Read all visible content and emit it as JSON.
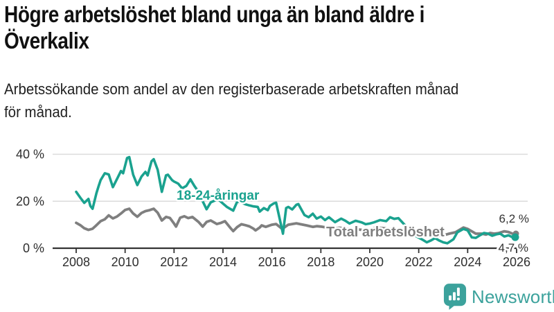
{
  "header": {
    "title_lines": [
      "Högre arbetslöshet bland unga än bland äldre i",
      "Överkalix"
    ],
    "subtitle_lines": [
      "Arbetssökande som andel av den registerbaserade arbetskraften månad",
      "för månad."
    ]
  },
  "footer": {
    "brand": "Newsworthy",
    "logo_icon": "speech-bubble-bar-chart-exclamation"
  },
  "colors": {
    "youth_line": "#1AA28F",
    "total_line": "#7F7F7F",
    "axis": "#333333",
    "grid": "#DBDBDB",
    "tick_text": "#2E2E2E",
    "end_label_text": "#333333",
    "logo": "#3CA29C",
    "background": "#FFFFFF"
  },
  "chart_data": {
    "type": "line",
    "title": "Högre arbetslöshet bland unga än bland äldre i Överkalix",
    "subtitle": "Arbetssökande som andel av den registerbaserade arbetskraften månad för månad.",
    "xlabel": "",
    "ylabel": "",
    "x_unit": "decimal_year_monthly",
    "xlim": [
      2007.7,
      2026.4
    ],
    "ylim": [
      0,
      42
    ],
    "yticks": [
      0,
      20,
      40
    ],
    "ytick_labels": [
      "0 %",
      "20 %",
      "40 %"
    ],
    "xticks": [
      2008,
      2010,
      2012,
      2014,
      2016,
      2018,
      2020,
      2022,
      2024,
      2026
    ],
    "grid": "horizontal",
    "legend_position": "inline-labels",
    "series": [
      {
        "name": "Total arbetslöshet",
        "color": "#7F7F7F",
        "end_label": "6,2 %",
        "points": [
          [
            2008.0,
            10.8
          ],
          [
            2008.17,
            9.8
          ],
          [
            2008.33,
            8.5
          ],
          [
            2008.5,
            7.8
          ],
          [
            2008.67,
            8.3
          ],
          [
            2008.83,
            9.8
          ],
          [
            2009.0,
            11.5
          ],
          [
            2009.17,
            12.3
          ],
          [
            2009.33,
            14.0
          ],
          [
            2009.5,
            12.7
          ],
          [
            2009.67,
            13.5
          ],
          [
            2009.83,
            14.8
          ],
          [
            2010.0,
            16.3
          ],
          [
            2010.17,
            16.8
          ],
          [
            2010.33,
            14.8
          ],
          [
            2010.5,
            13.4
          ],
          [
            2010.67,
            15.0
          ],
          [
            2010.83,
            15.8
          ],
          [
            2011.0,
            16.2
          ],
          [
            2011.17,
            16.8
          ],
          [
            2011.33,
            15.1
          ],
          [
            2011.5,
            11.8
          ],
          [
            2011.67,
            13.3
          ],
          [
            2011.83,
            12.9
          ],
          [
            2012.0,
            10.5
          ],
          [
            2012.08,
            9.2
          ],
          [
            2012.25,
            13.0
          ],
          [
            2012.42,
            13.6
          ],
          [
            2012.58,
            12.8
          ],
          [
            2012.75,
            13.3
          ],
          [
            2013.0,
            11.2
          ],
          [
            2013.17,
            9.2
          ],
          [
            2013.33,
            11.2
          ],
          [
            2013.5,
            11.8
          ],
          [
            2013.75,
            10.3
          ],
          [
            2013.92,
            10.8
          ],
          [
            2014.08,
            11.5
          ],
          [
            2014.33,
            8.3
          ],
          [
            2014.42,
            7.3
          ],
          [
            2014.58,
            9.0
          ],
          [
            2014.75,
            10.2
          ],
          [
            2014.92,
            9.8
          ],
          [
            2015.08,
            9.3
          ],
          [
            2015.25,
            8.3
          ],
          [
            2015.33,
            7.6
          ],
          [
            2015.5,
            8.8
          ],
          [
            2015.58,
            9.7
          ],
          [
            2015.75,
            9.1
          ],
          [
            2016.0,
            10.0
          ],
          [
            2016.17,
            10.3
          ],
          [
            2016.42,
            8.2
          ],
          [
            2016.67,
            10.0
          ],
          [
            2016.83,
            10.3
          ],
          [
            2017.0,
            10.6
          ],
          [
            2017.17,
            10.2
          ],
          [
            2017.42,
            9.7
          ],
          [
            2017.67,
            9.1
          ],
          [
            2017.83,
            9.4
          ],
          [
            2018.0,
            9.2
          ],
          [
            2018.25,
            8.8
          ],
          [
            2018.5,
            8.3
          ],
          [
            2018.75,
            8.7
          ],
          [
            2019.0,
            8.4
          ],
          [
            2019.25,
            8.1
          ],
          [
            2019.5,
            8.0
          ],
          [
            2019.75,
            7.7
          ],
          [
            2020.0,
            8.0
          ],
          [
            2020.25,
            8.8
          ],
          [
            2020.5,
            8.6
          ],
          [
            2020.75,
            8.3
          ],
          [
            2021.0,
            8.1
          ],
          [
            2021.25,
            7.9
          ],
          [
            2021.5,
            7.3
          ],
          [
            2021.75,
            6.6
          ],
          [
            2022.0,
            6.0
          ],
          [
            2022.25,
            5.6
          ],
          [
            2022.5,
            5.3
          ],
          [
            2022.75,
            5.2
          ],
          [
            2023.0,
            5.5
          ],
          [
            2023.25,
            6.2
          ],
          [
            2023.5,
            6.8
          ],
          [
            2023.83,
            8.8
          ],
          [
            2024.0,
            8.2
          ],
          [
            2024.17,
            7.2
          ],
          [
            2024.33,
            6.2
          ],
          [
            2024.58,
            6.2
          ],
          [
            2024.75,
            5.8
          ],
          [
            2024.92,
            6.5
          ],
          [
            2025.08,
            6.2
          ],
          [
            2025.25,
            6.4
          ],
          [
            2025.5,
            7.2
          ],
          [
            2025.67,
            6.9
          ],
          [
            2025.83,
            6.2
          ]
        ]
      },
      {
        "name": "18-24-åringar",
        "color": "#1AA28F",
        "end_label": "4,7 %",
        "points": [
          [
            2008.0,
            24.0
          ],
          [
            2008.17,
            21.5
          ],
          [
            2008.33,
            19.3
          ],
          [
            2008.5,
            21.0
          ],
          [
            2008.58,
            18.0
          ],
          [
            2008.67,
            16.8
          ],
          [
            2008.83,
            23.5
          ],
          [
            2008.92,
            26.5
          ],
          [
            2009.0,
            29.0
          ],
          [
            2009.17,
            31.9
          ],
          [
            2009.33,
            31.4
          ],
          [
            2009.5,
            26.0
          ],
          [
            2009.67,
            29.5
          ],
          [
            2009.83,
            32.9
          ],
          [
            2009.92,
            31.9
          ],
          [
            2010.08,
            38.4
          ],
          [
            2010.17,
            38.8
          ],
          [
            2010.33,
            31.3
          ],
          [
            2010.5,
            26.9
          ],
          [
            2010.67,
            30.5
          ],
          [
            2010.83,
            32.5
          ],
          [
            2010.92,
            31.0
          ],
          [
            2011.08,
            37.0
          ],
          [
            2011.17,
            37.9
          ],
          [
            2011.33,
            33.4
          ],
          [
            2011.5,
            24.0
          ],
          [
            2011.67,
            31.0
          ],
          [
            2011.75,
            31.3
          ],
          [
            2011.92,
            29.0
          ],
          [
            2012.0,
            28.4
          ],
          [
            2012.17,
            27.5
          ],
          [
            2012.33,
            25.5
          ],
          [
            2012.5,
            26.5
          ],
          [
            2012.67,
            29.3
          ],
          [
            2012.83,
            26.5
          ],
          [
            2013.0,
            24.0
          ],
          [
            2013.17,
            20.0
          ],
          [
            2013.33,
            16.6
          ],
          [
            2013.5,
            19.5
          ],
          [
            2013.67,
            20.3
          ],
          [
            2013.83,
            20.6
          ],
          [
            2014.0,
            19.0
          ],
          [
            2014.17,
            17.5
          ],
          [
            2014.42,
            16.0
          ],
          [
            2014.58,
            19.8
          ],
          [
            2014.75,
            19.5
          ],
          [
            2014.92,
            18.7
          ],
          [
            2015.08,
            18.2
          ],
          [
            2015.25,
            17.8
          ],
          [
            2015.42,
            17.6
          ],
          [
            2015.5,
            15.6
          ],
          [
            2015.67,
            17.1
          ],
          [
            2015.83,
            16.2
          ],
          [
            2015.92,
            18.0
          ],
          [
            2016.08,
            19.1
          ],
          [
            2016.17,
            19.4
          ],
          [
            2016.45,
            6.2
          ],
          [
            2016.58,
            17.1
          ],
          [
            2016.67,
            17.6
          ],
          [
            2016.83,
            16.5
          ],
          [
            2017.0,
            18.5
          ],
          [
            2017.08,
            18.8
          ],
          [
            2017.33,
            14.1
          ],
          [
            2017.5,
            13.2
          ],
          [
            2017.67,
            14.7
          ],
          [
            2017.83,
            12.6
          ],
          [
            2018.0,
            13.5
          ],
          [
            2018.17,
            12.0
          ],
          [
            2018.33,
            13.2
          ],
          [
            2018.58,
            11.1
          ],
          [
            2018.83,
            12.6
          ],
          [
            2019.0,
            11.7
          ],
          [
            2019.17,
            10.5
          ],
          [
            2019.42,
            11.7
          ],
          [
            2019.67,
            11.0
          ],
          [
            2019.83,
            10.2
          ],
          [
            2020.0,
            10.5
          ],
          [
            2020.17,
            11.0
          ],
          [
            2020.42,
            12.0
          ],
          [
            2020.67,
            11.5
          ],
          [
            2020.83,
            13.2
          ],
          [
            2021.0,
            12.5
          ],
          [
            2021.17,
            12.8
          ],
          [
            2021.42,
            10.0
          ],
          [
            2021.67,
            7.5
          ],
          [
            2021.83,
            5.5
          ],
          [
            2022.0,
            4.5
          ],
          [
            2022.17,
            3.5
          ],
          [
            2022.33,
            2.5
          ],
          [
            2022.5,
            3.3
          ],
          [
            2022.67,
            4.3
          ],
          [
            2022.83,
            3.3
          ],
          [
            2023.0,
            2.5
          ],
          [
            2023.17,
            2.1
          ],
          [
            2023.42,
            3.8
          ],
          [
            2023.58,
            6.8
          ],
          [
            2023.83,
            8.2
          ],
          [
            2024.0,
            7.6
          ],
          [
            2024.17,
            4.6
          ],
          [
            2024.33,
            4.4
          ],
          [
            2024.5,
            5.5
          ],
          [
            2024.67,
            6.5
          ],
          [
            2024.83,
            6.2
          ],
          [
            2025.0,
            5.3
          ],
          [
            2025.17,
            5.9
          ],
          [
            2025.33,
            6.2
          ],
          [
            2025.5,
            5.0
          ],
          [
            2025.67,
            5.5
          ],
          [
            2025.83,
            4.7
          ]
        ]
      }
    ]
  }
}
